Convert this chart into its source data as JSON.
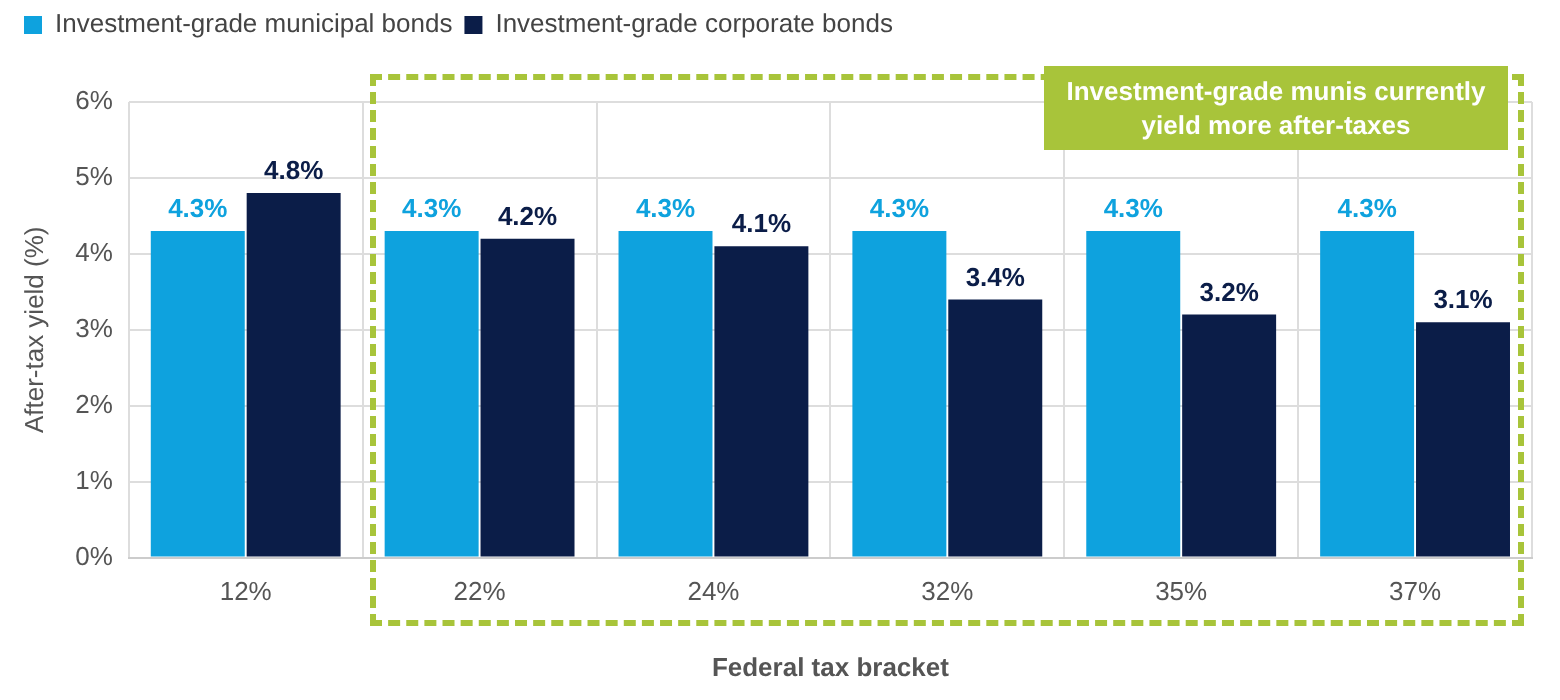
{
  "chart_data": {
    "type": "bar",
    "categories": [
      "12%",
      "22%",
      "24%",
      "32%",
      "35%",
      "37%"
    ],
    "series": [
      {
        "name": "Investment-grade municipal bonds",
        "color": "#0ea2de",
        "values": [
          4.3,
          4.3,
          4.3,
          4.3,
          4.3,
          4.3
        ],
        "value_labels": [
          "4.3%",
          "4.3%",
          "4.3%",
          "4.3%",
          "4.3%",
          "4.3%"
        ]
      },
      {
        "name": "Investment-grade corporate bonds",
        "color": "#0b1d48",
        "values": [
          4.8,
          4.2,
          4.1,
          3.4,
          3.2,
          3.1
        ],
        "value_labels": [
          "4.8%",
          "4.2%",
          "4.1%",
          "3.4%",
          "3.2%",
          "3.1%"
        ]
      }
    ],
    "xlabel": "Federal tax bracket",
    "ylabel": "After-tax yield (%)",
    "ylim": [
      0,
      6
    ],
    "yticks": [
      {
        "value": 0,
        "label": "0%"
      },
      {
        "value": 1,
        "label": "1%"
      },
      {
        "value": 2,
        "label": "2%"
      },
      {
        "value": 3,
        "label": "3%"
      },
      {
        "value": 4,
        "label": "4%"
      },
      {
        "value": 5,
        "label": "5%"
      },
      {
        "value": 6,
        "label": "6%"
      }
    ],
    "annotations": [
      "Investment-grade munis currently yield more after-taxes"
    ],
    "grid": true,
    "legend": "top left"
  }
}
